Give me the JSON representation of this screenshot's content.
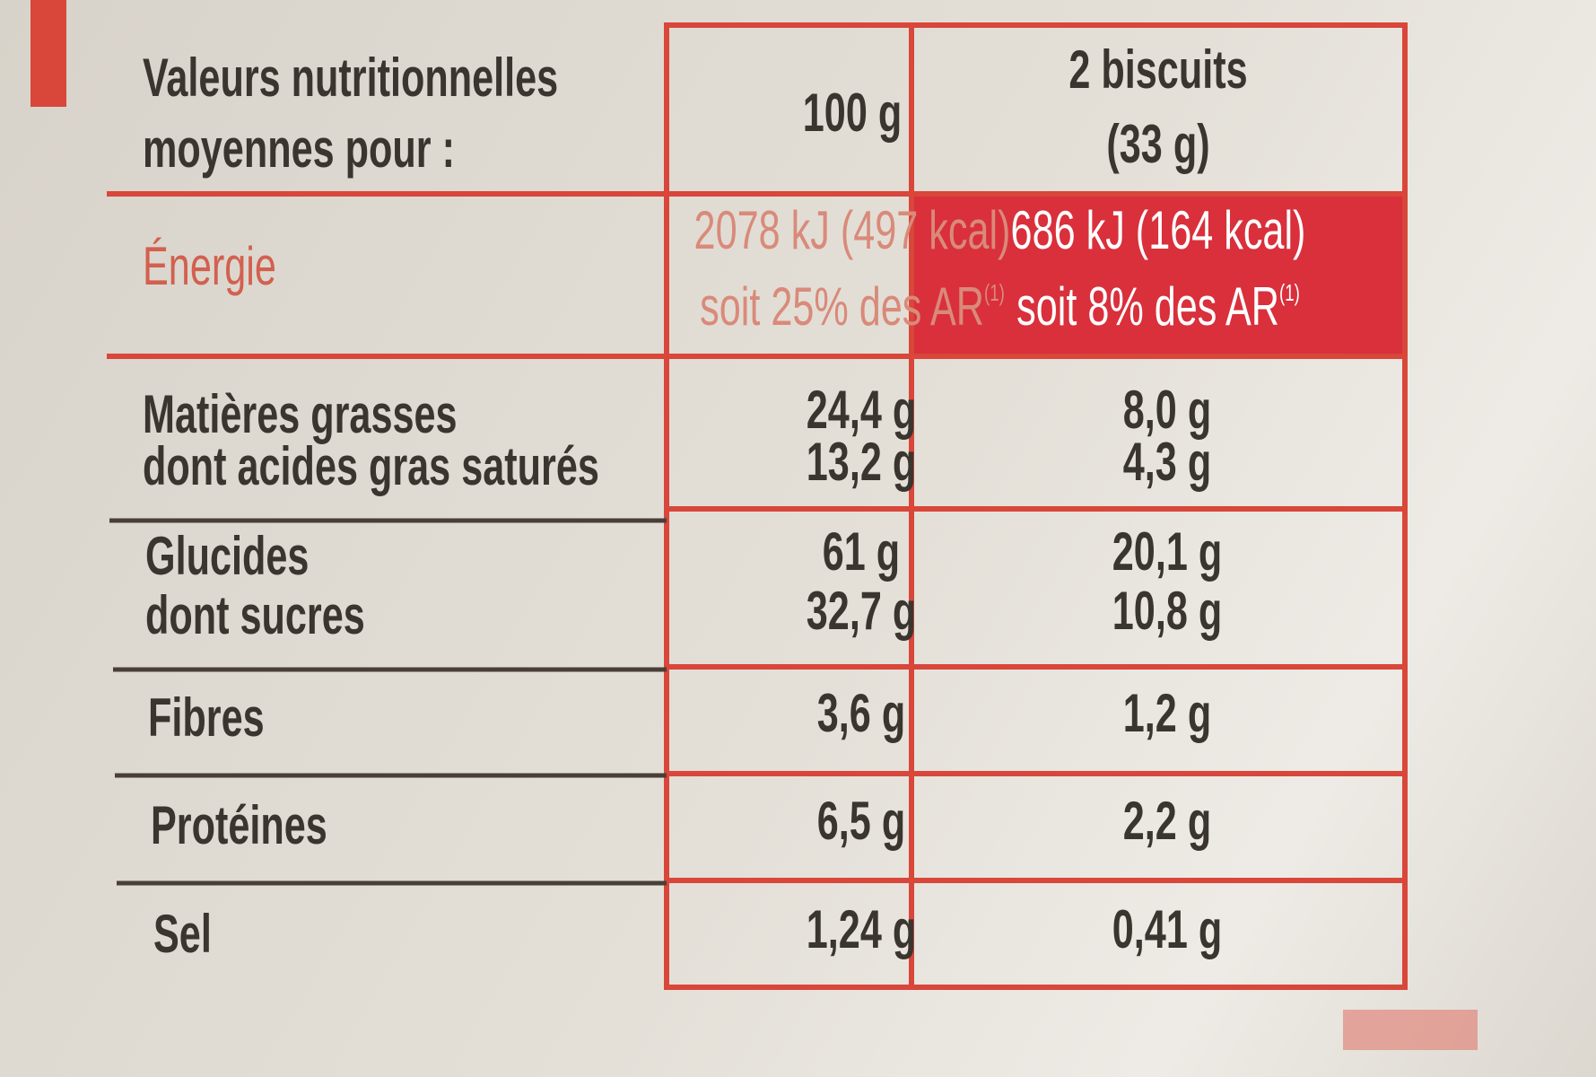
{
  "table": {
    "header": {
      "label": [
        "Valeurs nutritionnelles",
        "moyennes pour :"
      ],
      "columns": [
        [
          "100 g"
        ],
        [
          "2 biscuits",
          "(33 g)"
        ]
      ]
    },
    "energy": {
      "label": "Énergie",
      "cells": [
        {
          "lines": [
            "2078 kJ (497 kcal)",
            "soit 25% des AR"
          ],
          "note": "(1)"
        },
        {
          "lines": [
            "686 kJ (164 kcal)",
            "soit 8% des AR"
          ],
          "note": "(1)"
        }
      ]
    },
    "rows": [
      {
        "labels": [
          "Matières grasses",
          "dont acides gras saturés"
        ],
        "values": [
          [
            "24,4 g",
            "13,2 g"
          ],
          [
            "8,0 g",
            "4,3 g"
          ]
        ]
      },
      {
        "labels": [
          "Glucides",
          "dont sucres"
        ],
        "values": [
          [
            "61 g",
            "32,7 g"
          ],
          [
            "20,1 g",
            "10,8 g"
          ]
        ]
      },
      {
        "labels": [
          "Fibres"
        ],
        "values": [
          [
            "3,6 g"
          ],
          [
            "1,2 g"
          ]
        ]
      },
      {
        "labels": [
          "Protéines"
        ],
        "values": [
          [
            "6,5 g"
          ],
          [
            "2,2 g"
          ]
        ]
      },
      {
        "labels": [
          "Sel"
        ],
        "values": [
          [
            "1,24 g"
          ],
          [
            "0,41 g"
          ]
        ]
      }
    ]
  }
}
